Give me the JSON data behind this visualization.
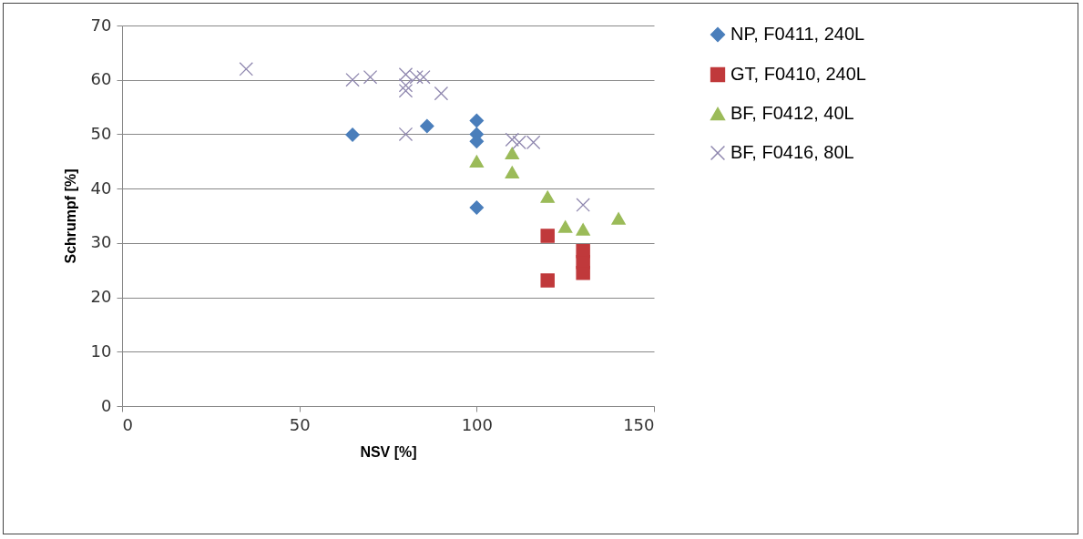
{
  "chart_data": {
    "type": "scatter",
    "xlabel": "NSV [%]",
    "ylabel": "Schrumpf [%]",
    "xlim": [
      0,
      150
    ],
    "xticks": [
      0,
      50,
      100,
      150
    ],
    "ylim": [
      0,
      70
    ],
    "yticks": [
      0,
      10,
      20,
      30,
      40,
      50,
      60,
      70
    ],
    "grid": "y",
    "legend": "right",
    "series": [
      {
        "name": "NP, F0411, 240L",
        "color": "#4a7ebb",
        "marker": "diamond",
        "x": [
          65,
          86,
          100,
          100,
          100,
          100
        ],
        "values": [
          49.9,
          51.5,
          52.5,
          50,
          48.7,
          36.5
        ]
      },
      {
        "name": "GT, F0410, 240L",
        "color": "#c0393b",
        "marker": "square",
        "x": [
          120,
          120,
          130,
          130,
          130
        ],
        "values": [
          31.3,
          23.1,
          28.5,
          26.5,
          24.5
        ]
      },
      {
        "name": "BF, F0412, 40L",
        "color": "#9bbb59",
        "marker": "triangle",
        "x": [
          100,
          110,
          110,
          120,
          125,
          130,
          140
        ],
        "values": [
          45,
          46.5,
          43,
          38.5,
          33,
          32.5,
          34.5
        ]
      },
      {
        "name": "BF, F0416, 80L",
        "color": "#8e86ae",
        "marker": "cross",
        "x": [
          35,
          65,
          70,
          80,
          80,
          80,
          83,
          85,
          90,
          80,
          110,
          112,
          116,
          130
        ],
        "values": [
          62,
          60,
          60.5,
          61,
          59,
          58,
          60.5,
          60.5,
          57.5,
          50,
          49,
          48.5,
          48.5,
          37
        ]
      }
    ]
  }
}
